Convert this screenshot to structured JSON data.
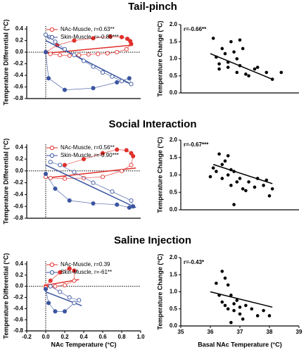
{
  "chart_data": [
    {
      "type": "line",
      "title": "Tail-pinch",
      "ylabel": "Temperature Differential (°C)",
      "xlim": [
        -0.2,
        1.0
      ],
      "ylim": [
        -0.8,
        0.45
      ],
      "yticks": [
        0.4,
        0.2,
        {
          "value": 0,
          "label": "0.0"
        },
        -0.2,
        -0.4,
        -0.6,
        -0.8
      ],
      "reference_lines": {
        "x": 0,
        "y": 0
      },
      "legend": "top",
      "series": [
        {
          "name": "NAc-Muscle, r=0.63**",
          "color": "#e0302c",
          "x": [
            0,
            0.12,
            0.3,
            0.5,
            0.68,
            0.8,
            0.86,
            0.89,
            0.9,
            0.85,
            0.75,
            0.65,
            0.55,
            0.45,
            0.35,
            0.25,
            0.15,
            0.05
          ],
          "values": [
            0,
            0.12,
            0.2,
            0.24,
            0.27,
            0.26,
            0.23,
            0.19,
            0.14,
            0.05,
            0.0,
            -0.02,
            -0.03,
            -0.04,
            -0.05,
            -0.06,
            -0.05,
            -0.03
          ],
          "filled": [
            true,
            true,
            true,
            true,
            true,
            true,
            true,
            true,
            true,
            false,
            false,
            false,
            false,
            false,
            false,
            false,
            false,
            false
          ],
          "fit_x": [
            0,
            0.9
          ],
          "fit_y": [
            -0.02,
            0.12
          ]
        },
        {
          "name": "Skin-Muscle, r=-0.85***",
          "color": "#3b55a0",
          "x": [
            0,
            0.03,
            0.2,
            0.5,
            0.75,
            0.88,
            0.9,
            0.8,
            0.7,
            0.6,
            0.5,
            0.4,
            0.3,
            0.2,
            0.1,
            0.04,
            0.0
          ],
          "values": [
            0,
            -0.45,
            -0.65,
            -0.62,
            -0.52,
            -0.45,
            -0.55,
            -0.5,
            -0.42,
            -0.35,
            -0.25,
            -0.15,
            -0.05,
            0.05,
            0.18,
            0.26,
            0.3
          ],
          "filled": [
            true,
            true,
            true,
            true,
            true,
            true,
            false,
            false,
            false,
            false,
            false,
            false,
            false,
            false,
            false,
            false,
            false
          ],
          "fit_x": [
            0,
            0.9
          ],
          "fit_y": [
            0.2,
            -0.55
          ]
        }
      ]
    },
    {
      "type": "scatter",
      "ylabel": "Temperature Change (°C)",
      "annotation": "r=-0.66**",
      "xlim": [
        35,
        39
      ],
      "ylim": [
        0,
        2
      ],
      "yticks": [
        {
          "value": 2,
          "label": "2.0"
        },
        1.5,
        {
          "value": 1,
          "label": "1.0"
        },
        0.5,
        {
          "value": 0,
          "label": "0.0"
        }
      ],
      "color": "#000000",
      "x": [
        36.1,
        36.2,
        36.3,
        36.3,
        36.4,
        36.5,
        36.6,
        36.6,
        36.7,
        36.8,
        36.9,
        36.9,
        37.0,
        37.0,
        37.1,
        37.2,
        37.3,
        37.5,
        37.6,
        37.9,
        38.1,
        38.4
      ],
      "values": [
        1.6,
        1.05,
        0.85,
        0.7,
        1.3,
        1.15,
        0.9,
        0.75,
        1.5,
        1.2,
        1.0,
        0.6,
        1.55,
        0.8,
        1.3,
        0.55,
        0.5,
        0.7,
        0.75,
        0.6,
        0.4,
        0.6
      ],
      "fit_x": [
        36,
        38.1
      ],
      "fit_y": [
        1.15,
        0.4
      ]
    },
    {
      "type": "line",
      "title": "Social Interaction",
      "ylabel": "Temperature Differential (°C)",
      "xlim": [
        -0.2,
        1.0
      ],
      "ylim": [
        -0.8,
        0.45
      ],
      "yticks": [
        0.4,
        0.2,
        {
          "value": 0,
          "label": "0.0"
        },
        -0.2,
        -0.4,
        -0.6,
        -0.8
      ],
      "reference_lines": {
        "x": 0,
        "y": 0
      },
      "legend": "top",
      "series": [
        {
          "name": "NAc-Muscle, r=0.56**",
          "color": "#e0302c",
          "x": [
            0.2,
            0.4,
            0.6,
            0.75,
            0.85,
            0.9,
            0.92,
            0.9,
            0.8,
            0.6,
            0.4,
            0.2,
            0.05,
            0.0
          ],
          "values": [
            0.1,
            0.2,
            0.3,
            0.36,
            0.35,
            0.3,
            0.25,
            0.1,
            0.0,
            -0.1,
            -0.12,
            -0.13,
            -0.12,
            -0.1
          ],
          "filled": [
            true,
            true,
            true,
            true,
            true,
            true,
            true,
            false,
            false,
            false,
            false,
            false,
            false,
            false
          ],
          "fit_x": [
            0,
            0.95
          ],
          "fit_y": [
            -0.12,
            0.05
          ]
        },
        {
          "name": "Skin-Muscle, r=-0.90***",
          "color": "#3b55a0",
          "x": [
            0,
            0.1,
            0.25,
            0.5,
            0.75,
            0.88,
            0.92,
            0.9,
            0.7,
            0.5,
            0.3,
            0.15,
            0.05
          ],
          "values": [
            -0.05,
            -0.3,
            -0.5,
            -0.55,
            -0.57,
            -0.62,
            -0.6,
            -0.5,
            -0.35,
            -0.2,
            -0.02,
            0.1,
            0.15
          ],
          "filled": [
            true,
            true,
            true,
            true,
            true,
            true,
            true,
            false,
            false,
            false,
            false,
            false,
            false
          ],
          "fit_x": [
            0,
            0.95
          ],
          "fit_y": [
            0.1,
            -0.62
          ]
        }
      ]
    },
    {
      "type": "scatter",
      "ylabel": "Temperature Change (°C)",
      "annotation": "r=-0.67***",
      "xlim": [
        35,
        39
      ],
      "ylim": [
        0,
        2
      ],
      "yticks": [
        {
          "value": 2,
          "label": "2.0"
        },
        1.5,
        {
          "value": 1,
          "label": "1.0"
        },
        0.5,
        {
          "value": 0,
          "label": "0.0"
        }
      ],
      "color": "#000000",
      "x": [
        36.0,
        36.1,
        36.2,
        36.3,
        36.4,
        36.4,
        36.5,
        36.6,
        36.6,
        36.7,
        36.7,
        36.8,
        36.8,
        36.9,
        37.0,
        37.1,
        37.2,
        37.3,
        37.5,
        37.6,
        37.8,
        37.9,
        38.0,
        38.1
      ],
      "values": [
        0.95,
        1.2,
        1.1,
        1.6,
        1.3,
        0.9,
        1.4,
        1.0,
        1.55,
        1.15,
        0.7,
        1.1,
        0.15,
        0.8,
        0.9,
        0.6,
        0.55,
        0.8,
        0.65,
        0.9,
        0.7,
        0.85,
        0.4,
        0.6
      ],
      "fit_x": [
        36.1,
        38.1
      ],
      "fit_y": [
        1.3,
        0.75
      ]
    },
    {
      "type": "line",
      "title": "Saline Injection",
      "ylabel": "Temperature Differential (°C)",
      "xlabel": "NAc Temperature (°C)",
      "xlim": [
        -0.2,
        1.0
      ],
      "ylim": [
        -0.8,
        0.45
      ],
      "xticks": [
        -0.2,
        {
          "value": 0,
          "label": "0.0"
        },
        0.2,
        0.4,
        0.6,
        0.8,
        {
          "value": 1,
          "label": "1.0"
        }
      ],
      "yticks": [
        0.4,
        0.2,
        {
          "value": 0,
          "label": "0.0"
        },
        -0.2,
        -0.4,
        -0.6,
        -0.8
      ],
      "reference_lines": {
        "x": 0,
        "y": 0
      },
      "legend": "top",
      "series": [
        {
          "name": "NAc-Muscle, r=0.39",
          "color": "#e0302c",
          "x": [
            0.0,
            0.05,
            0.15,
            0.25,
            0.3,
            0.3,
            0.2,
            0.1,
            0.0
          ],
          "values": [
            0.0,
            0.1,
            0.25,
            0.32,
            0.28,
            0.1,
            0.02,
            0.0,
            -0.02
          ],
          "filled": [
            true,
            true,
            true,
            true,
            true,
            false,
            false,
            false,
            false
          ],
          "fit_x": [
            0,
            0.35
          ],
          "fit_y": [
            0.02,
            0.12
          ]
        },
        {
          "name": "Skin-Muscle, r=-61**",
          "color": "#3b55a0",
          "x": [
            0,
            0.03,
            0.1,
            0.2,
            0.3,
            0.35,
            0.25,
            0.15,
            0.05
          ],
          "values": [
            -0.05,
            -0.3,
            -0.45,
            -0.45,
            -0.3,
            -0.25,
            -0.2,
            -0.1,
            0.0
          ],
          "filled": [
            true,
            true,
            true,
            true,
            false,
            false,
            false,
            false,
            false
          ],
          "fit_x": [
            0,
            0.38
          ],
          "fit_y": [
            -0.1,
            -0.35
          ]
        }
      ]
    },
    {
      "type": "scatter",
      "ylabel": "Temperature Change (°C)",
      "xlabel": "Basal NAc Temperature (°C)",
      "annotation": "r=-0.43*",
      "xlim": [
        35,
        39
      ],
      "ylim": [
        0,
        2
      ],
      "xticks": [
        35,
        36,
        37,
        38,
        39
      ],
      "yticks": [
        {
          "value": 2,
          "label": "2.0"
        },
        1.5,
        {
          "value": 1,
          "label": "1.0"
        },
        0.5,
        {
          "value": 0,
          "label": "0.0"
        }
      ],
      "color": "#000000",
      "x": [
        36.2,
        36.3,
        36.4,
        36.4,
        36.5,
        36.5,
        36.6,
        36.6,
        36.7,
        36.7,
        36.8,
        36.8,
        36.9,
        37.0,
        37.0,
        37.1,
        37.2,
        37.4,
        37.6,
        37.8,
        38.0
      ],
      "values": [
        1.25,
        0.9,
        1.6,
        0.7,
        1.4,
        0.6,
        1.2,
        0.5,
        0.9,
        0.1,
        0.65,
        0.45,
        0.75,
        0.55,
        0.35,
        0.2,
        0.6,
        0.5,
        0.3,
        0.45,
        0.3
      ],
      "fit_x": [
        36.0,
        38.1
      ],
      "fit_y": [
        1.0,
        0.55
      ]
    }
  ]
}
